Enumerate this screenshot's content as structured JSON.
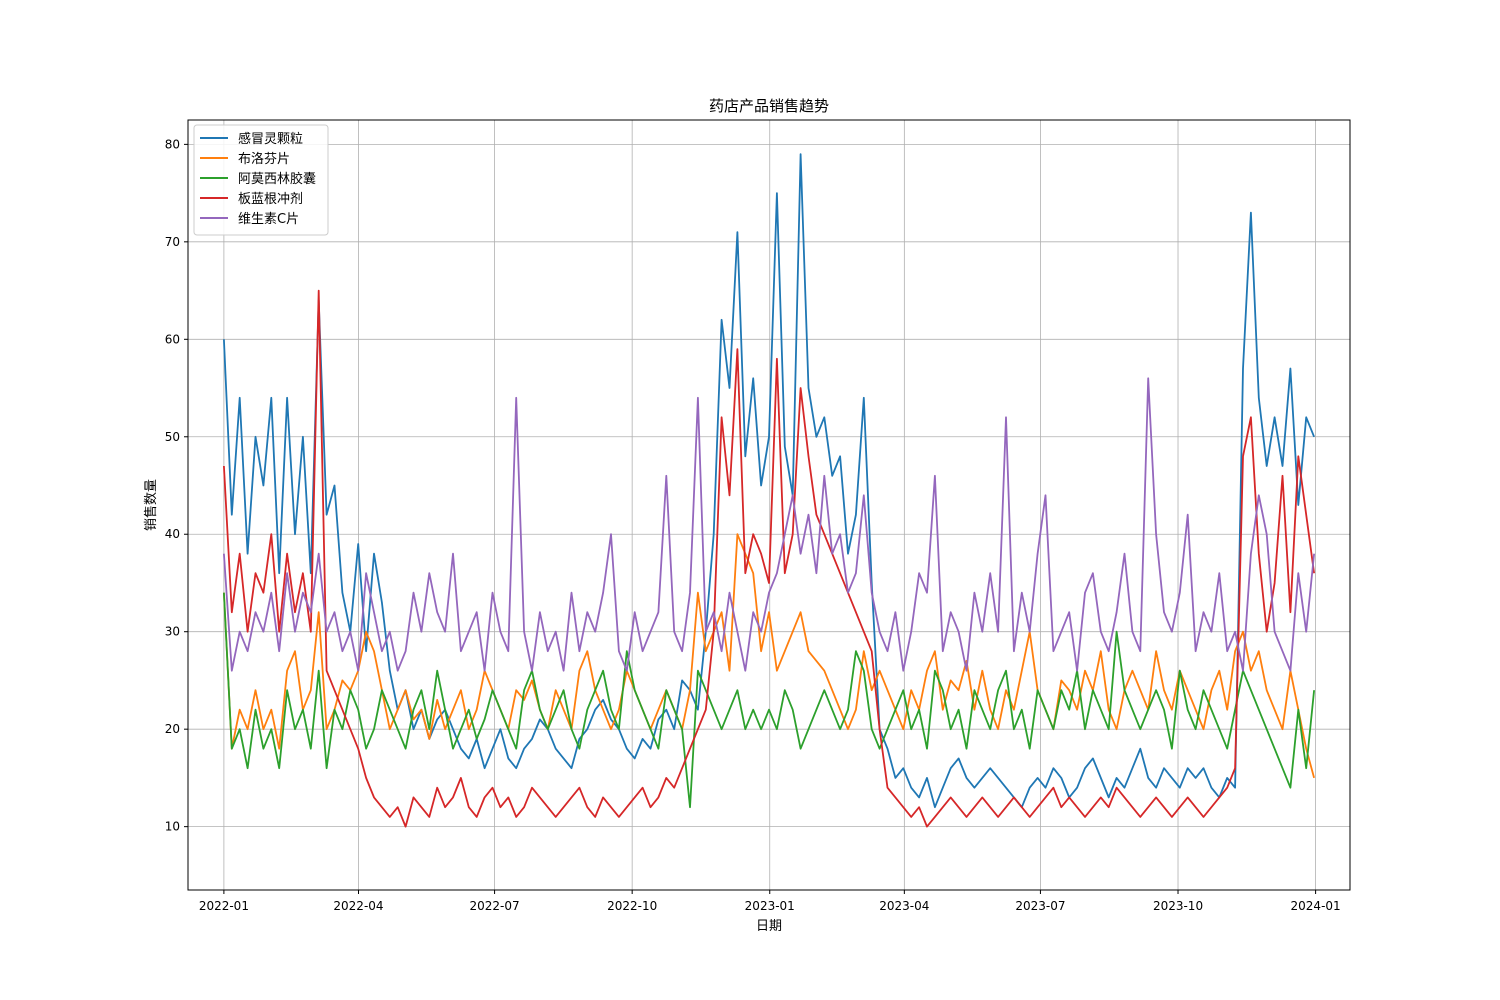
{
  "chart_data": {
    "type": "line",
    "title": "药店产品销售趋势",
    "xlabel": "日期",
    "ylabel": "销售数量",
    "x_range": [
      "2021-12-08",
      "2024-01-24"
    ],
    "ylim": [
      3.5,
      82.5
    ],
    "x_ticks": [
      "2022-01",
      "2022-04",
      "2022-07",
      "2022-10",
      "2023-01",
      "2023-04",
      "2023-07",
      "2023-10",
      "2024-01"
    ],
    "y_ticks": [
      10,
      20,
      30,
      40,
      50,
      60,
      70,
      80
    ],
    "grid": true,
    "legend_position": "top-left",
    "x_start": "2022-01-01",
    "x_end": "2023-12-31",
    "sampling": "weekly",
    "series": [
      {
        "name": "感冒灵颗粒",
        "color": "#1f77b4",
        "values": [
          60,
          42,
          54,
          38,
          50,
          45,
          54,
          36,
          54,
          40,
          50,
          36,
          64,
          42,
          45,
          34,
          30,
          39,
          28,
          38,
          33,
          26,
          22,
          24,
          20,
          22,
          19,
          21,
          22,
          20,
          18,
          17,
          19,
          16,
          18,
          20,
          17,
          16,
          18,
          19,
          21,
          20,
          18,
          17,
          16,
          19,
          20,
          22,
          23,
          21,
          20,
          18,
          17,
          19,
          18,
          21,
          22,
          20,
          25,
          24,
          22,
          30,
          40,
          62,
          55,
          71,
          48,
          56,
          45,
          50,
          75,
          49,
          44,
          79,
          55,
          50,
          52,
          46,
          48,
          38,
          42,
          54,
          35,
          20,
          18,
          15,
          16,
          14,
          13,
          15,
          12,
          14,
          16,
          17,
          15,
          14,
          15,
          16,
          15,
          14,
          13,
          12,
          14,
          15,
          14,
          16,
          15,
          13,
          14,
          16,
          17,
          15,
          13,
          15,
          14,
          16,
          18,
          15,
          14,
          16,
          15,
          14,
          16,
          15,
          16,
          14,
          13,
          15,
          14,
          57,
          73,
          54,
          47,
          52,
          47,
          57,
          43,
          52,
          50
        ]
      },
      {
        "name": "布洛芬片",
        "color": "#ff7f0e",
        "values": [
          34,
          18,
          22,
          20,
          24,
          20,
          22,
          18,
          26,
          28,
          22,
          24,
          32,
          20,
          22,
          25,
          24,
          26,
          30,
          28,
          24,
          20,
          22,
          24,
          21,
          22,
          19,
          23,
          20,
          22,
          24,
          20,
          22,
          26,
          24,
          22,
          20,
          24,
          23,
          25,
          22,
          20,
          24,
          22,
          20,
          26,
          28,
          24,
          22,
          20,
          22,
          26,
          24,
          22,
          20,
          22,
          24,
          22,
          20,
          24,
          34,
          28,
          30,
          32,
          26,
          40,
          38,
          36,
          28,
          32,
          26,
          28,
          30,
          32,
          28,
          27,
          26,
          24,
          22,
          20,
          22,
          28,
          24,
          26,
          24,
          22,
          20,
          24,
          22,
          26,
          28,
          22,
          25,
          24,
          27,
          22,
          26,
          22,
          20,
          24,
          22,
          26,
          30,
          24,
          22,
          20,
          25,
          24,
          22,
          26,
          24,
          28,
          22,
          20,
          24,
          26,
          24,
          22,
          28,
          24,
          22,
          26,
          24,
          22,
          20,
          24,
          26,
          22,
          28,
          30,
          26,
          28,
          24,
          22,
          20,
          26,
          22,
          18,
          15
        ]
      },
      {
        "name": "阿莫西林胶囊",
        "color": "#2ca02c",
        "values": [
          34,
          18,
          20,
          16,
          22,
          18,
          20,
          16,
          24,
          20,
          22,
          18,
          26,
          16,
          22,
          20,
          24,
          22,
          18,
          20,
          24,
          22,
          20,
          18,
          22,
          24,
          20,
          26,
          22,
          18,
          20,
          22,
          19,
          21,
          24,
          22,
          20,
          18,
          24,
          26,
          22,
          20,
          22,
          24,
          20,
          18,
          22,
          24,
          26,
          22,
          20,
          28,
          24,
          22,
          20,
          18,
          24,
          22,
          20,
          12,
          26,
          24,
          22,
          20,
          22,
          24,
          20,
          22,
          20,
          22,
          20,
          24,
          22,
          18,
          20,
          22,
          24,
          22,
          20,
          22,
          28,
          26,
          20,
          18,
          20,
          22,
          24,
          20,
          22,
          18,
          26,
          24,
          20,
          22,
          18,
          24,
          22,
          20,
          24,
          26,
          20,
          22,
          18,
          24,
          22,
          20,
          24,
          22,
          26,
          20,
          24,
          22,
          20,
          30,
          24,
          22,
          20,
          22,
          24,
          22,
          18,
          26,
          22,
          20,
          24,
          22,
          20,
          18,
          22,
          26,
          24,
          22,
          20,
          18,
          16,
          14,
          22,
          16,
          24
        ]
      },
      {
        "name": "板蓝根冲剂",
        "color": "#d62728",
        "values": [
          47,
          32,
          38,
          30,
          36,
          34,
          40,
          30,
          38,
          32,
          36,
          30,
          65,
          26,
          24,
          22,
          20,
          18,
          15,
          13,
          12,
          11,
          12,
          10,
          13,
          12,
          11,
          14,
          12,
          13,
          15,
          12,
          11,
          13,
          14,
          12,
          13,
          11,
          12,
          14,
          13,
          12,
          11,
          12,
          13,
          14,
          12,
          11,
          13,
          12,
          11,
          12,
          13,
          14,
          12,
          13,
          15,
          14,
          16,
          18,
          20,
          22,
          30,
          52,
          44,
          59,
          36,
          40,
          38,
          35,
          58,
          36,
          40,
          55,
          48,
          42,
          40,
          38,
          36,
          34,
          32,
          30,
          28,
          20,
          14,
          13,
          12,
          11,
          12,
          10,
          11,
          12,
          13,
          12,
          11,
          12,
          13,
          12,
          11,
          12,
          13,
          12,
          11,
          12,
          13,
          14,
          12,
          13,
          12,
          11,
          12,
          13,
          12,
          14,
          13,
          12,
          11,
          12,
          13,
          12,
          11,
          12,
          13,
          12,
          11,
          12,
          13,
          14,
          16,
          48,
          52,
          38,
          30,
          35,
          46,
          32,
          48,
          42,
          36
        ]
      },
      {
        "name": "维生素C片",
        "color": "#9467bd",
        "values": [
          38,
          26,
          30,
          28,
          32,
          30,
          34,
          28,
          36,
          30,
          34,
          32,
          38,
          30,
          32,
          28,
          30,
          26,
          36,
          32,
          28,
          30,
          26,
          28,
          34,
          30,
          36,
          32,
          30,
          38,
          28,
          30,
          32,
          26,
          34,
          30,
          28,
          54,
          30,
          26,
          32,
          28,
          30,
          26,
          34,
          28,
          32,
          30,
          34,
          40,
          28,
          26,
          32,
          28,
          30,
          32,
          46,
          30,
          28,
          34,
          54,
          30,
          32,
          28,
          34,
          30,
          26,
          32,
          30,
          34,
          36,
          40,
          44,
          38,
          42,
          36,
          46,
          38,
          40,
          34,
          36,
          44,
          34,
          30,
          28,
          32,
          26,
          30,
          36,
          34,
          46,
          28,
          32,
          30,
          26,
          34,
          30,
          36,
          30,
          52,
          28,
          34,
          30,
          38,
          44,
          28,
          30,
          32,
          26,
          34,
          36,
          30,
          28,
          32,
          38,
          30,
          28,
          56,
          40,
          32,
          30,
          34,
          42,
          28,
          32,
          30,
          36,
          28,
          30,
          26,
          38,
          44,
          40,
          30,
          28,
          26,
          36,
          30,
          38
        ]
      }
    ]
  }
}
